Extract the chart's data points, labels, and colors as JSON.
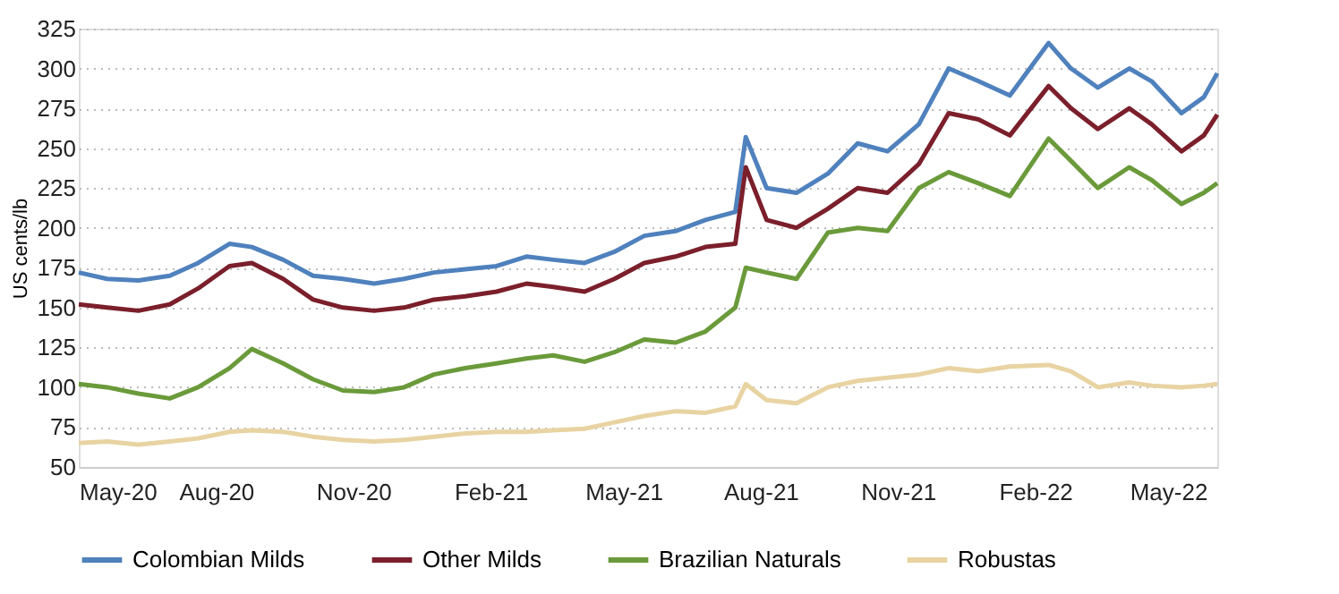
{
  "chart_data": {
    "type": "line",
    "ylabel": "US cents/lb",
    "x": [
      "2020-05-01",
      "2020-05-20",
      "2020-06-10",
      "2020-07-01",
      "2020-07-20",
      "2020-08-10",
      "2020-08-25",
      "2020-09-15",
      "2020-10-05",
      "2020-10-25",
      "2020-11-15",
      "2020-12-05",
      "2020-12-25",
      "2021-01-15",
      "2021-02-05",
      "2021-02-25",
      "2021-03-15",
      "2021-04-05",
      "2021-04-25",
      "2021-05-15",
      "2021-06-05",
      "2021-06-25",
      "2021-07-15",
      "2021-07-22",
      "2021-08-05",
      "2021-08-25",
      "2021-09-15",
      "2021-10-05",
      "2021-10-25",
      "2021-11-15",
      "2021-12-05",
      "2021-12-25",
      "2022-01-15",
      "2022-02-10",
      "2022-02-25",
      "2022-03-15",
      "2022-04-05",
      "2022-04-20",
      "2022-05-10",
      "2022-05-25",
      "2022-06-03"
    ],
    "series": [
      {
        "name": "Colombian Milds",
        "color": "#4f81bd",
        "values": [
          172,
          168,
          167,
          170,
          178,
          190,
          188,
          180,
          170,
          168,
          165,
          168,
          172,
          174,
          176,
          182,
          180,
          178,
          185,
          195,
          198,
          205,
          210,
          257,
          225,
          222,
          234,
          253,
          248,
          265,
          300,
          292,
          283,
          316,
          300,
          288,
          300,
          292,
          272,
          282,
          297
        ]
      },
      {
        "name": "Other Milds",
        "color": "#7b1f2b",
        "values": [
          152,
          150,
          148,
          152,
          162,
          176,
          178,
          168,
          155,
          150,
          148,
          150,
          155,
          157,
          160,
          165,
          163,
          160,
          168,
          178,
          182,
          188,
          190,
          238,
          205,
          200,
          212,
          225,
          222,
          240,
          272,
          268,
          258,
          289,
          275,
          262,
          275,
          265,
          248,
          258,
          271
        ]
      },
      {
        "name": "Brazilian Naturals",
        "color": "#6a9a3a",
        "values": [
          102,
          100,
          96,
          93,
          100,
          112,
          124,
          115,
          105,
          98,
          97,
          100,
          108,
          112,
          115,
          118,
          120,
          116,
          122,
          130,
          128,
          135,
          150,
          175,
          172,
          168,
          197,
          200,
          198,
          225,
          235,
          228,
          220,
          256,
          242,
          225,
          238,
          230,
          215,
          222,
          228
        ]
      },
      {
        "name": "Robustas",
        "color": "#e8d3a2",
        "values": [
          65,
          66,
          64,
          66,
          68,
          72,
          73,
          72,
          69,
          67,
          66,
          67,
          69,
          71,
          72,
          72,
          73,
          74,
          78,
          82,
          85,
          84,
          88,
          102,
          92,
          90,
          100,
          104,
          106,
          108,
          112,
          110,
          113,
          114,
          110,
          100,
          103,
          101,
          100,
          101,
          102
        ]
      }
    ],
    "xlim": [
      "2020-05-01",
      "2022-06-03"
    ],
    "xticks": [
      {
        "value": "2020-05-01",
        "label": "May-20"
      },
      {
        "value": "2020-08-01",
        "label": "Aug-20"
      },
      {
        "value": "2020-11-01",
        "label": "Nov-20"
      },
      {
        "value": "2021-02-01",
        "label": "Feb-21"
      },
      {
        "value": "2021-05-01",
        "label": "May-21"
      },
      {
        "value": "2021-08-01",
        "label": "Aug-21"
      },
      {
        "value": "2021-11-01",
        "label": "Nov-21"
      },
      {
        "value": "2022-02-01",
        "label": "Feb-22"
      },
      {
        "value": "2022-05-01",
        "label": "May-22"
      }
    ],
    "ylim": [
      50,
      325
    ],
    "yticks": [
      50,
      75,
      100,
      125,
      150,
      175,
      200,
      225,
      250,
      275,
      300,
      325
    ],
    "grid": "y",
    "legend": "bottom",
    "line_style": "solid",
    "marker": "none"
  }
}
